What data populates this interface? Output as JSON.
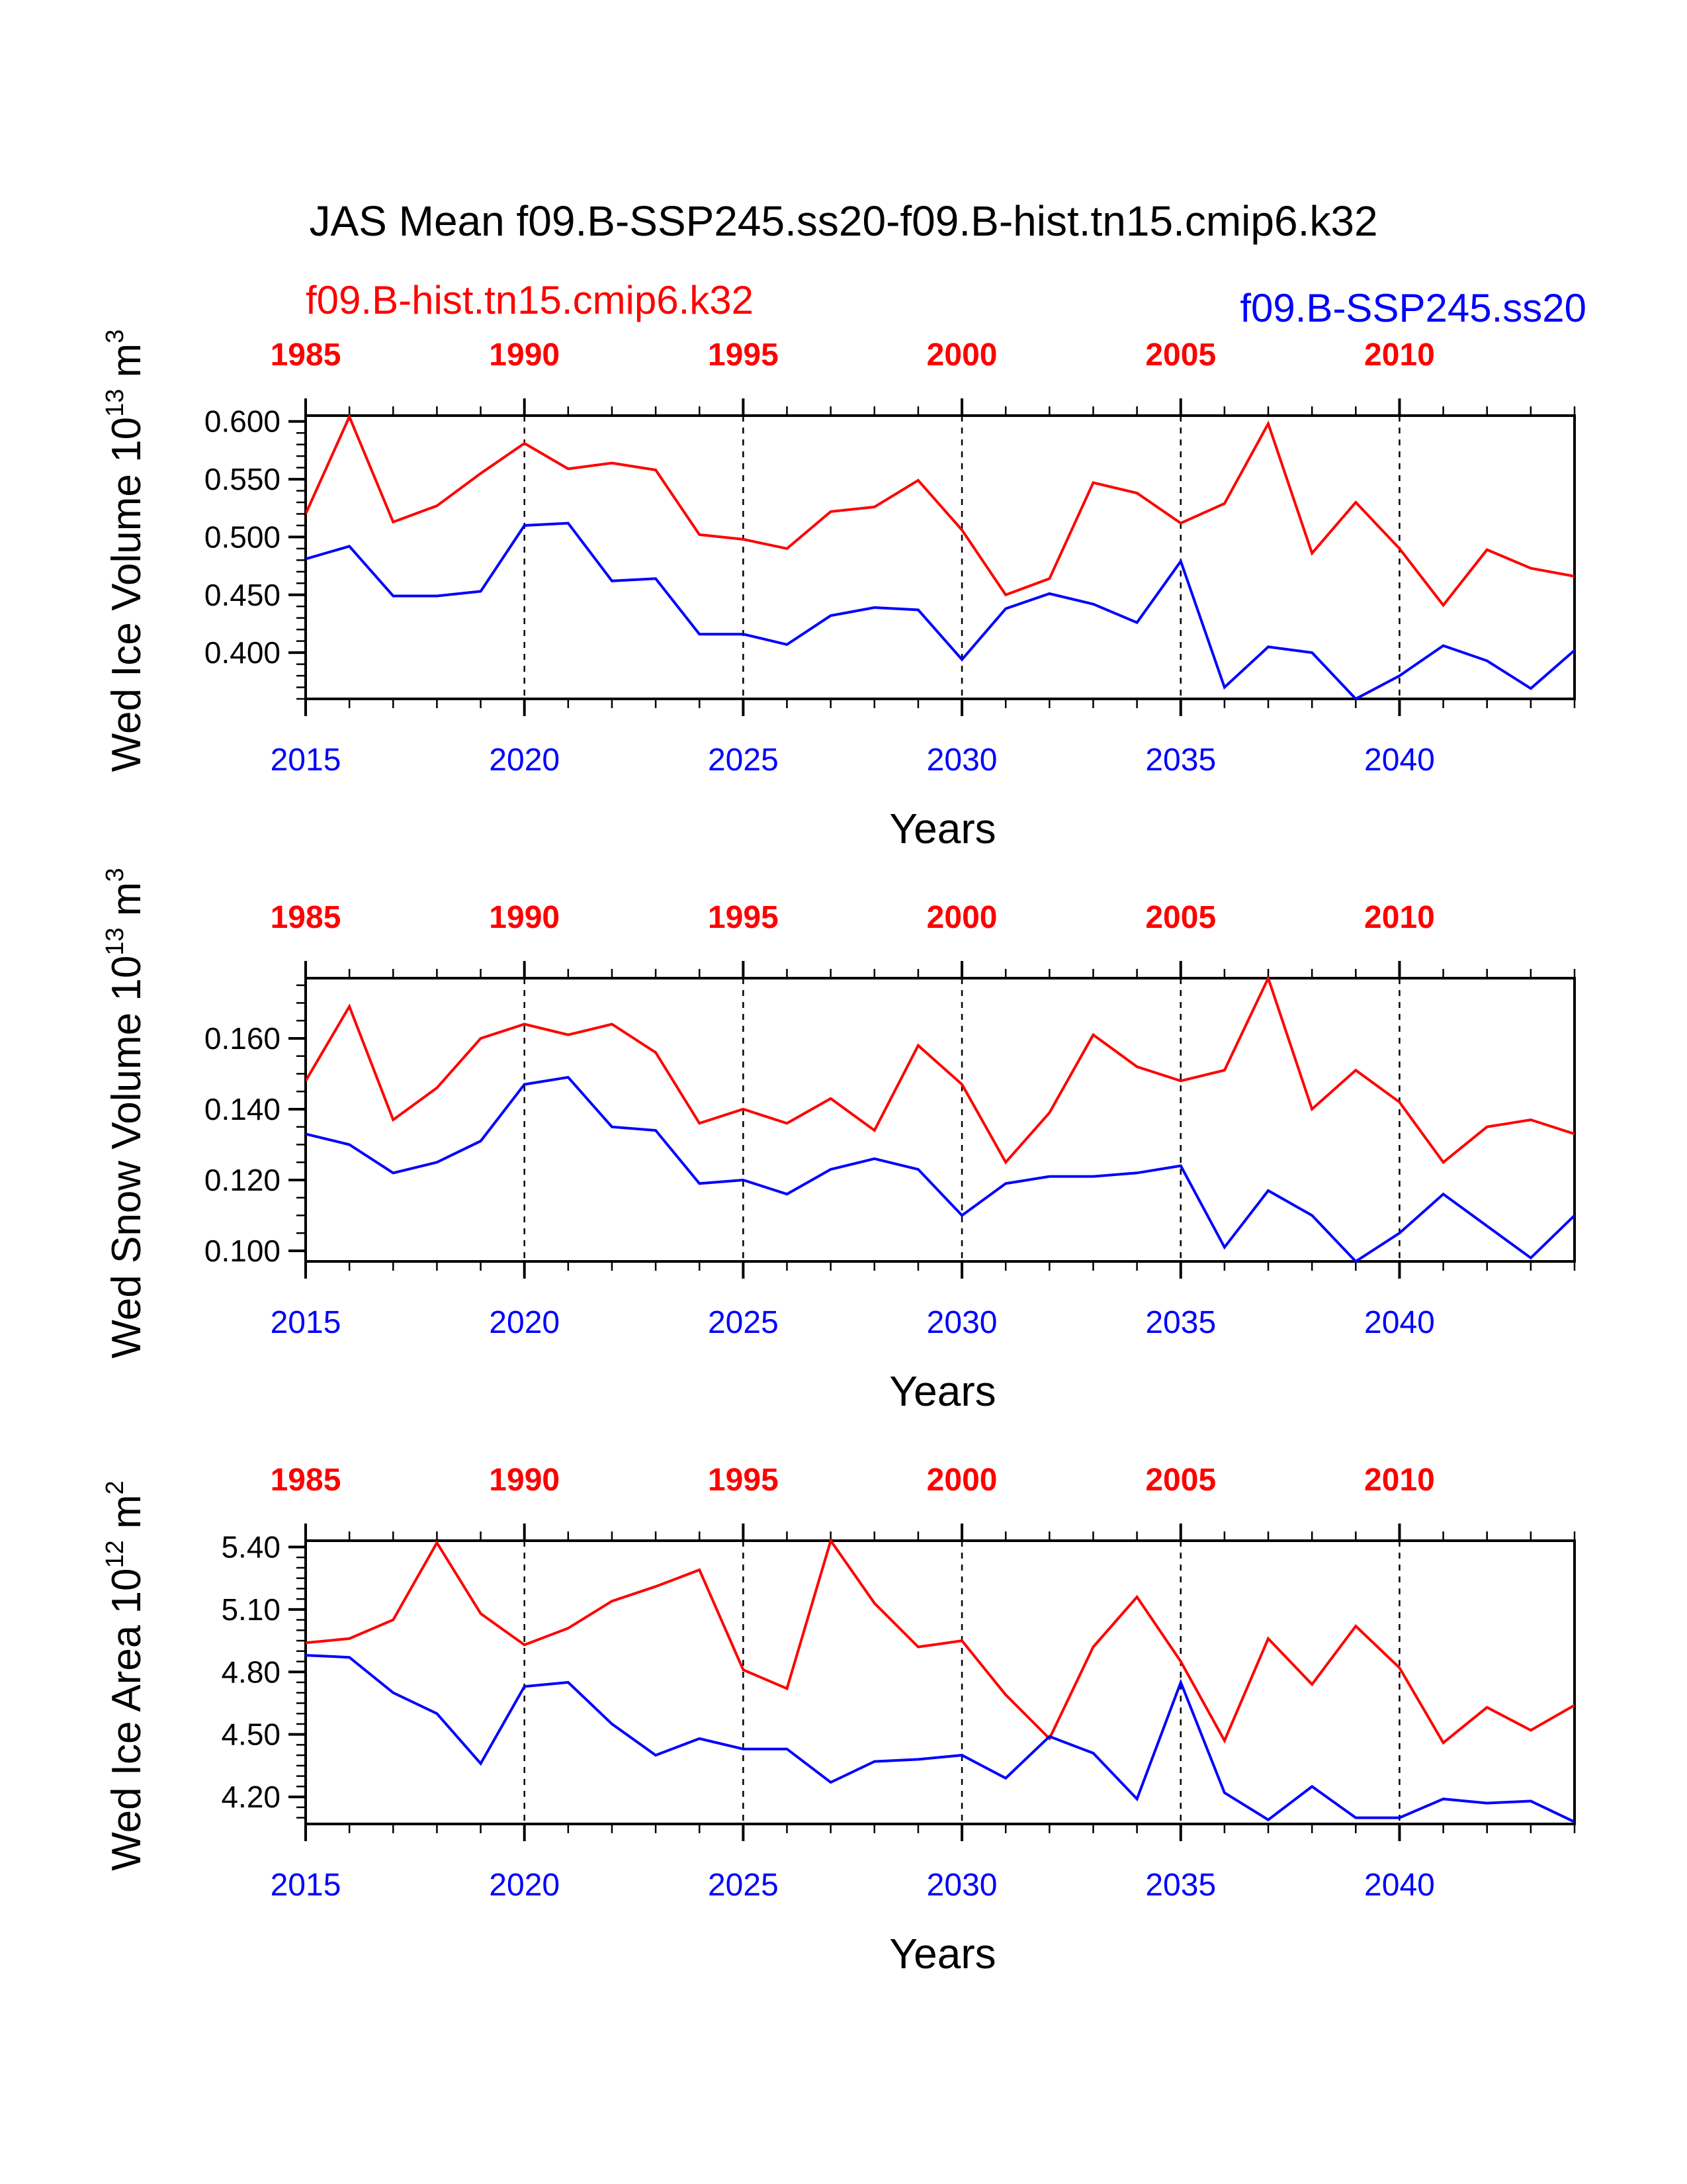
{
  "title": "JAS Mean f09.B-SSP245.ss20-f09.B-hist.tn15.cmip6.k32",
  "legend": {
    "hist_label": "f09.B-hist.tn15.cmip6.k32",
    "ssp_label": "f09.B-SSP245.ss20"
  },
  "colors": {
    "hist": "#ff0000",
    "ssp": "#0000ff",
    "axis": "#000000"
  },
  "x_axis_label": "Years",
  "top_axis_ticks": [
    "1985",
    "1990",
    "1995",
    "2000",
    "2005",
    "2010"
  ],
  "bottom_axis_ticks": [
    "2015",
    "2020",
    "2025",
    "2030",
    "2035",
    "2040"
  ],
  "chart_data": [
    {
      "type": "line",
      "ylabel": "Wed Ice Volume 10^13 m^3",
      "ylabel_parts": {
        "name": "Wed Ice Volume 10",
        "exp": "13",
        "unit": " m",
        "unit_exp": "3"
      },
      "ylim": [
        0.36,
        0.605
      ],
      "y_ticks": [
        0.4,
        0.45,
        0.5,
        0.55,
        0.6
      ],
      "y_tick_labels": [
        "0.400",
        "0.450",
        "0.500",
        "0.550",
        "0.600"
      ],
      "y_minor_step": 0.01,
      "x": [
        2015,
        2016,
        2017,
        2018,
        2019,
        2020,
        2021,
        2022,
        2023,
        2024,
        2025,
        2026,
        2027,
        2028,
        2029,
        2030,
        2031,
        2032,
        2033,
        2034,
        2035,
        2036,
        2037,
        2038,
        2039,
        2040,
        2041,
        2042,
        2043,
        2044
      ],
      "xlim": [
        2015,
        2044
      ],
      "top_x_years": [
        1985,
        1986,
        1987,
        1988,
        1989,
        1990,
        1991,
        1992,
        1993,
        1994,
        1995,
        1996,
        1997,
        1998,
        1999,
        2000,
        2001,
        2002,
        2003,
        2004,
        2005,
        2006,
        2007,
        2008,
        2009,
        2010,
        2011,
        2012,
        2013,
        2014
      ],
      "series": [
        {
          "name": "f09.B-hist.tn15.cmip6.k32",
          "values": [
            0.52,
            0.604,
            0.513,
            0.527,
            0.555,
            0.581,
            0.559,
            0.564,
            0.558,
            0.502,
            0.498,
            0.49,
            0.522,
            0.526,
            0.549,
            0.506,
            0.45,
            0.464,
            0.547,
            0.538,
            0.512,
            0.529,
            0.598,
            0.486,
            0.53,
            0.49,
            0.441,
            0.489,
            0.473,
            0.466
          ]
        },
        {
          "name": "f09.B-SSP245.ss20",
          "values": [
            0.481,
            0.492,
            0.449,
            0.449,
            0.453,
            0.51,
            0.512,
            0.462,
            0.464,
            0.416,
            0.416,
            0.407,
            0.432,
            0.439,
            0.437,
            0.394,
            0.438,
            0.451,
            0.442,
            0.426,
            0.479,
            0.37,
            0.405,
            0.4,
            0.36,
            0.38,
            0.406,
            0.393,
            0.369,
            0.402
          ]
        }
      ]
    },
    {
      "type": "line",
      "ylabel": "Wed Snow Volume 10^13 m^3",
      "ylabel_parts": {
        "name": "Wed Snow Volume 10",
        "exp": "13",
        "unit": " m",
        "unit_exp": "3"
      },
      "ylim": [
        0.097,
        0.177
      ],
      "y_ticks": [
        0.1,
        0.12,
        0.14,
        0.16
      ],
      "y_tick_labels": [
        "0.100",
        "0.120",
        "0.140",
        "0.160"
      ],
      "y_minor_step": 0.005,
      "x": [
        2015,
        2016,
        2017,
        2018,
        2019,
        2020,
        2021,
        2022,
        2023,
        2024,
        2025,
        2026,
        2027,
        2028,
        2029,
        2030,
        2031,
        2032,
        2033,
        2034,
        2035,
        2036,
        2037,
        2038,
        2039,
        2040,
        2041,
        2042,
        2043,
        2044
      ],
      "xlim": [
        2015,
        2044
      ],
      "series": [
        {
          "name": "f09.B-hist.tn15.cmip6.k32",
          "values": [
            0.148,
            0.169,
            0.137,
            0.146,
            0.16,
            0.164,
            0.161,
            0.164,
            0.156,
            0.136,
            0.14,
            0.136,
            0.143,
            0.134,
            0.158,
            0.147,
            0.125,
            0.139,
            0.161,
            0.152,
            0.148,
            0.151,
            0.177,
            0.14,
            0.151,
            0.142,
            0.125,
            0.135,
            0.137,
            0.133
          ]
        },
        {
          "name": "f09.B-SSP245.ss20",
          "values": [
            0.133,
            0.13,
            0.122,
            0.125,
            0.131,
            0.147,
            0.149,
            0.135,
            0.134,
            0.119,
            0.12,
            0.116,
            0.123,
            0.126,
            0.123,
            0.11,
            0.119,
            0.121,
            0.121,
            0.122,
            0.124,
            0.101,
            0.117,
            0.11,
            0.097,
            0.105,
            0.116,
            0.107,
            0.098,
            0.11
          ]
        }
      ]
    },
    {
      "type": "line",
      "ylabel": "Wed Ice Area 10^12 m^2",
      "ylabel_parts": {
        "name": "Wed Ice Area 10",
        "exp": "12",
        "unit": " m",
        "unit_exp": "2"
      },
      "ylim": [
        4.07,
        5.43
      ],
      "y_ticks": [
        4.2,
        4.5,
        4.8,
        5.1,
        5.4
      ],
      "y_tick_labels": [
        "4.20",
        "4.50",
        "4.80",
        "5.10",
        "5.40"
      ],
      "y_minor_step": 0.05,
      "x": [
        2015,
        2016,
        2017,
        2018,
        2019,
        2020,
        2021,
        2022,
        2023,
        2024,
        2025,
        2026,
        2027,
        2028,
        2029,
        2030,
        2031,
        2032,
        2033,
        2034,
        2035,
        2036,
        2037,
        2038,
        2039,
        2040,
        2041,
        2042,
        2043,
        2044
      ],
      "xlim": [
        2015,
        2044
      ],
      "series": [
        {
          "name": "f09.B-hist.tn15.cmip6.k32",
          "values": [
            4.94,
            4.96,
            5.05,
            5.42,
            5.08,
            4.93,
            5.01,
            5.14,
            5.21,
            5.29,
            4.81,
            4.72,
            5.43,
            5.13,
            4.92,
            4.95,
            4.69,
            4.48,
            4.92,
            5.16,
            4.85,
            4.47,
            4.96,
            4.74,
            5.02,
            4.82,
            4.46,
            4.63,
            4.52,
            4.64
          ]
        },
        {
          "name": "f09.B-SSP245.ss20",
          "values": [
            4.88,
            4.87,
            4.7,
            4.6,
            4.36,
            4.73,
            4.75,
            4.55,
            4.4,
            4.48,
            4.43,
            4.43,
            4.27,
            4.37,
            4.38,
            4.4,
            4.29,
            4.49,
            4.41,
            4.19,
            4.75,
            4.22,
            4.09,
            4.25,
            4.1,
            4.1,
            4.19,
            4.17,
            4.18,
            4.08
          ]
        }
      ]
    }
  ]
}
